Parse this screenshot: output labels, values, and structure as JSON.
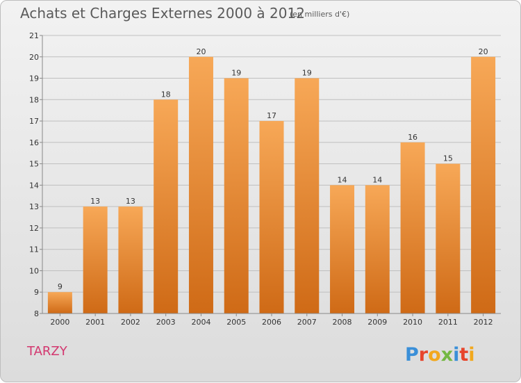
{
  "title": "Achats et Charges Externes 2000 à 2012",
  "subtitle": "(en milliers d'€)",
  "commune": "TARZY",
  "logo_text": "Proxiti",
  "colors": {
    "bar_light": "#f7a857",
    "bar_dark": "#cf6a16",
    "grid": "#bfbfbf",
    "commune": "#d3376f"
  },
  "chart_data": {
    "type": "bar",
    "categories": [
      "2000",
      "2001",
      "2002",
      "2003",
      "2004",
      "2005",
      "2006",
      "2007",
      "2008",
      "2009",
      "2010",
      "2011",
      "2012"
    ],
    "values": [
      9,
      13,
      13,
      18,
      20,
      19,
      17,
      19,
      14,
      14,
      16,
      15,
      20
    ],
    "ylim": [
      8,
      21
    ],
    "yticks": [
      8,
      9,
      10,
      11,
      12,
      13,
      14,
      15,
      16,
      17,
      18,
      19,
      20,
      21
    ],
    "grid": true,
    "data_labels": true
  }
}
